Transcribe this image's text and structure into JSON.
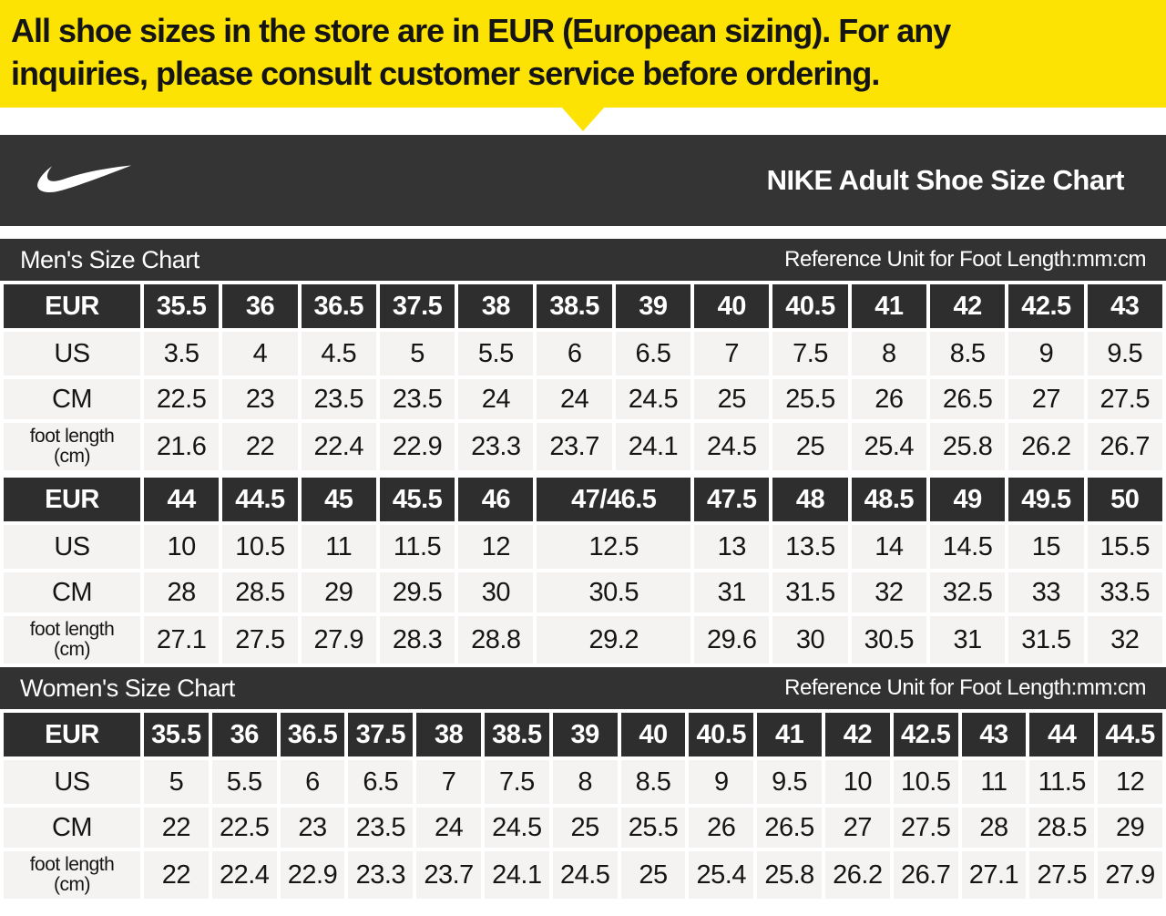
{
  "banner": {
    "line1": "All shoe sizes in the store are in EUR (European sizing). For any",
    "line2": "inquiries, please consult customer service before ordering."
  },
  "header": {
    "logo": "nike-swoosh",
    "title": "NIKE Adult Shoe Size Chart"
  },
  "mens_section": {
    "title": "Men's Size Chart",
    "reference": "Reference Unit for Foot Length:mm:cm"
  },
  "womens_section": {
    "title": "Women's Size Chart",
    "reference": "Reference Unit for Foot Length:mm:cm"
  },
  "colors": {
    "banner_yellow": "#FCE303",
    "header_dark": "#343434",
    "section_bar_dark": "#323232",
    "cell_dark": "#2E2E2E",
    "cell_light": "#F4F3F1"
  },
  "chart_data": [
    {
      "type": "table",
      "title": "Men's Size Chart (EUR 35.5-43)",
      "rows": [
        {
          "label": "EUR",
          "style": "dark",
          "values": [
            "35.5",
            "36",
            "36.5",
            "37.5",
            "38",
            "38.5",
            "39",
            "40",
            "40.5",
            "41",
            "42",
            "42.5",
            "43"
          ]
        },
        {
          "label": "US",
          "style": "light",
          "values": [
            "3.5",
            "4",
            "4.5",
            "5",
            "5.5",
            "6",
            "6.5",
            "7",
            "7.5",
            "8",
            "8.5",
            "9",
            "9.5"
          ]
        },
        {
          "label": "CM",
          "style": "light",
          "values": [
            "22.5",
            "23",
            "23.5",
            "23.5",
            "24",
            "24",
            "24.5",
            "25",
            "25.5",
            "26",
            "26.5",
            "27",
            "27.5"
          ]
        },
        {
          "label": "foot length",
          "sublabel": "(cm)",
          "style": "light",
          "values": [
            "21.6",
            "22",
            "22.4",
            "22.9",
            "23.3",
            "23.7",
            "24.1",
            "24.5",
            "25",
            "25.4",
            "25.8",
            "26.2",
            "26.7"
          ]
        }
      ]
    },
    {
      "type": "table",
      "title": "Men's Size Chart (EUR 44-50)",
      "colspans": [
        1,
        1,
        1,
        1,
        1,
        2,
        1,
        1,
        1,
        1,
        1,
        1
      ],
      "rows": [
        {
          "label": "EUR",
          "style": "dark",
          "values": [
            "44",
            "44.5",
            "45",
            "45.5",
            "46",
            "47/46.5",
            "47.5",
            "48",
            "48.5",
            "49",
            "49.5",
            "50"
          ]
        },
        {
          "label": "US",
          "style": "light",
          "values": [
            "10",
            "10.5",
            "11",
            "11.5",
            "12",
            "12.5",
            "13",
            "13.5",
            "14",
            "14.5",
            "15",
            "15.5"
          ]
        },
        {
          "label": "CM",
          "style": "light",
          "values": [
            "28",
            "28.5",
            "29",
            "29.5",
            "30",
            "30.5",
            "31",
            "31.5",
            "32",
            "32.5",
            "33",
            "33.5"
          ]
        },
        {
          "label": "foot length",
          "sublabel": "(cm)",
          "style": "light",
          "values": [
            "27.1",
            "27.5",
            "27.9",
            "28.3",
            "28.8",
            "29.2",
            "29.6",
            "30",
            "30.5",
            "31",
            "31.5",
            "32"
          ]
        }
      ]
    },
    {
      "type": "table",
      "title": "Women's Size Chart",
      "rows": [
        {
          "label": "EUR",
          "style": "dark",
          "values": [
            "35.5",
            "36",
            "36.5",
            "37.5",
            "38",
            "38.5",
            "39",
            "40",
            "40.5",
            "41",
            "42",
            "42.5",
            "43",
            "44",
            "44.5"
          ]
        },
        {
          "label": "US",
          "style": "light",
          "values": [
            "5",
            "5.5",
            "6",
            "6.5",
            "7",
            "7.5",
            "8",
            "8.5",
            "9",
            "9.5",
            "10",
            "10.5",
            "11",
            "11.5",
            "12"
          ]
        },
        {
          "label": "CM",
          "style": "light",
          "values": [
            "22",
            "22.5",
            "23",
            "23.5",
            "24",
            "24.5",
            "25",
            "25.5",
            "26",
            "26.5",
            "27",
            "27.5",
            "28",
            "28.5",
            "29"
          ]
        },
        {
          "label": "foot length",
          "sublabel": "(cm)",
          "style": "light",
          "values": [
            "22",
            "22.4",
            "22.9",
            "23.3",
            "23.7",
            "24.1",
            "24.5",
            "25",
            "25.4",
            "25.8",
            "26.2",
            "26.7",
            "27.1",
            "27.5",
            "27.9"
          ]
        }
      ]
    }
  ]
}
